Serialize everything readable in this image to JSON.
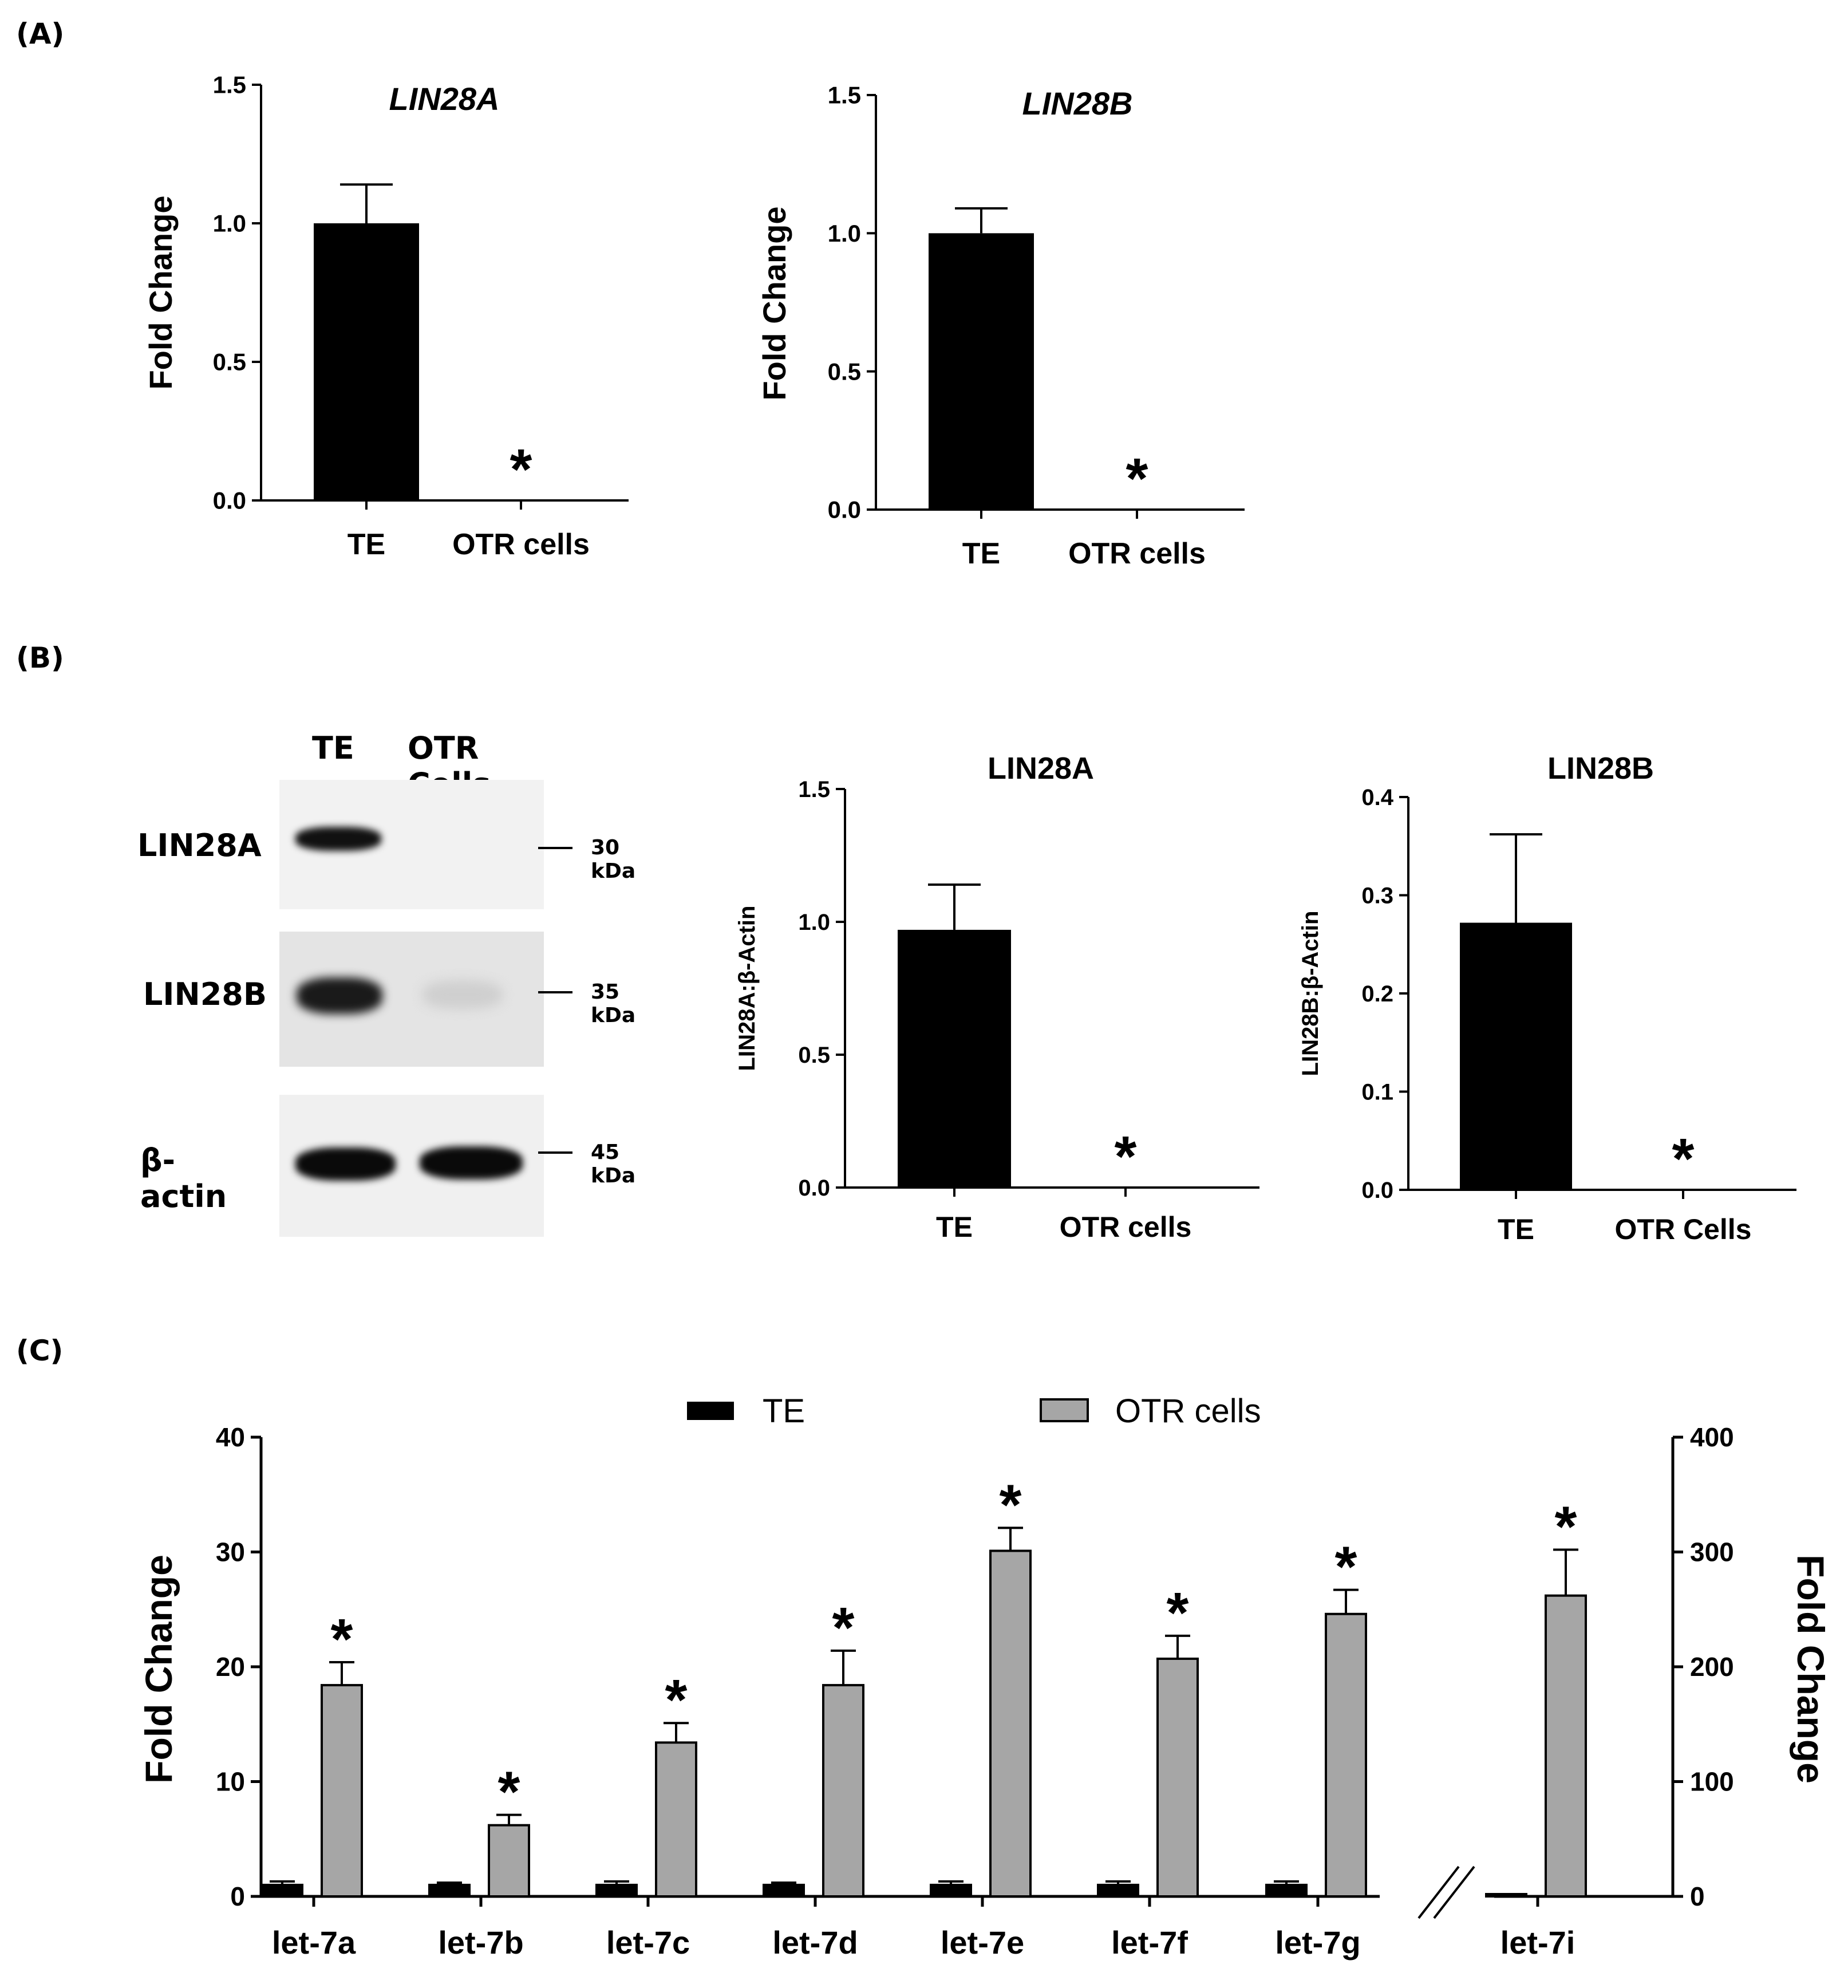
{
  "panels": {
    "A": "(A)",
    "B": "(B)",
    "C": "(C)"
  },
  "blot": {
    "lanes": [
      "TE",
      "OTR Cells"
    ],
    "rows": [
      {
        "label": "LIN28A",
        "kda": "30 kDa"
      },
      {
        "label": "LIN28B",
        "kda": "35 kDa"
      },
      {
        "label": "β-actin",
        "kda": "45 kDa"
      }
    ]
  },
  "chart_data": [
    {
      "id": "A1",
      "type": "bar",
      "title": "LIN28A",
      "title_italic": true,
      "categories": [
        "TE",
        "OTR cells"
      ],
      "values": [
        1.0,
        0.0
      ],
      "errors": [
        0.14,
        0.0
      ],
      "stars": [
        "",
        "*"
      ],
      "ylabel": "Fold Change",
      "ylim": [
        0,
        1.5
      ],
      "yticks": [
        "0.0",
        "0.5",
        "1.0",
        "1.5"
      ],
      "color": "#000000"
    },
    {
      "id": "A2",
      "type": "bar",
      "title": "LIN28B",
      "title_italic": true,
      "categories": [
        "TE",
        "OTR cells"
      ],
      "values": [
        1.0,
        0.0
      ],
      "errors": [
        0.09,
        0.0
      ],
      "stars": [
        "",
        "*"
      ],
      "ylabel": "Fold Change",
      "ylim": [
        0,
        1.5
      ],
      "yticks": [
        "0.0",
        "0.5",
        "1.0",
        "1.5"
      ],
      "color": "#000000"
    },
    {
      "id": "B1",
      "type": "bar",
      "title": "LIN28A",
      "title_italic": false,
      "categories": [
        "TE",
        "OTR cells"
      ],
      "values": [
        0.97,
        0.0
      ],
      "errors": [
        0.17,
        0.0
      ],
      "stars": [
        "",
        "*"
      ],
      "ylabel": "LIN28A:β-Actin",
      "ylim": [
        0,
        1.5
      ],
      "yticks": [
        "0.0",
        "0.5",
        "1.0",
        "1.5"
      ],
      "color": "#000000"
    },
    {
      "id": "B2",
      "type": "bar",
      "title": "LIN28B",
      "title_italic": false,
      "categories": [
        "TE",
        "OTR Cells"
      ],
      "values": [
        0.272,
        0.0
      ],
      "errors": [
        0.09,
        0.0
      ],
      "stars": [
        "",
        "*"
      ],
      "ylabel": "LIN28B:β-Actin",
      "ylim": [
        0,
        0.4
      ],
      "yticks": [
        "0.0",
        "0.1",
        "0.2",
        "0.3",
        "0.4"
      ],
      "color": "#000000"
    },
    {
      "id": "C",
      "type": "bar",
      "legend": [
        "TE",
        "OTR cells"
      ],
      "legend_placement": "top-center",
      "colors": {
        "TE": "#000000",
        "OTR cells": "#a6a6a6"
      },
      "left_axis": {
        "ylabel": "Fold Change",
        "ylim": [
          0,
          40
        ],
        "yticks": [
          "0",
          "10",
          "20",
          "30",
          "40"
        ]
      },
      "right_axis": {
        "ylabel": "Fold Change",
        "ylim": [
          0,
          400
        ],
        "yticks": [
          "0",
          "100",
          "200",
          "300",
          "400"
        ]
      },
      "categories": [
        "let-7a",
        "let-7b",
        "let-7c",
        "let-7d",
        "let-7e",
        "let-7f",
        "let-7g",
        "let-7i"
      ],
      "axis_for_category": [
        "left",
        "left",
        "left",
        "left",
        "left",
        "left",
        "left",
        "right"
      ],
      "series": [
        {
          "name": "TE",
          "values": [
            1.0,
            1.0,
            1.0,
            1.0,
            1.0,
            1.0,
            1.0,
            1.0
          ],
          "errors": [
            0.3,
            0.2,
            0.3,
            0.2,
            0.3,
            0.3,
            0.3,
            0.5
          ]
        },
        {
          "name": "OTR cells",
          "values": [
            18.4,
            6.2,
            13.4,
            18.4,
            30.1,
            20.7,
            24.6,
            262
          ],
          "errors": [
            2.0,
            0.9,
            1.7,
            3.0,
            2.0,
            2.0,
            2.1,
            40
          ]
        }
      ],
      "stars": [
        "*",
        "*",
        "*",
        "*",
        "*",
        "*",
        "*",
        "*"
      ]
    }
  ]
}
